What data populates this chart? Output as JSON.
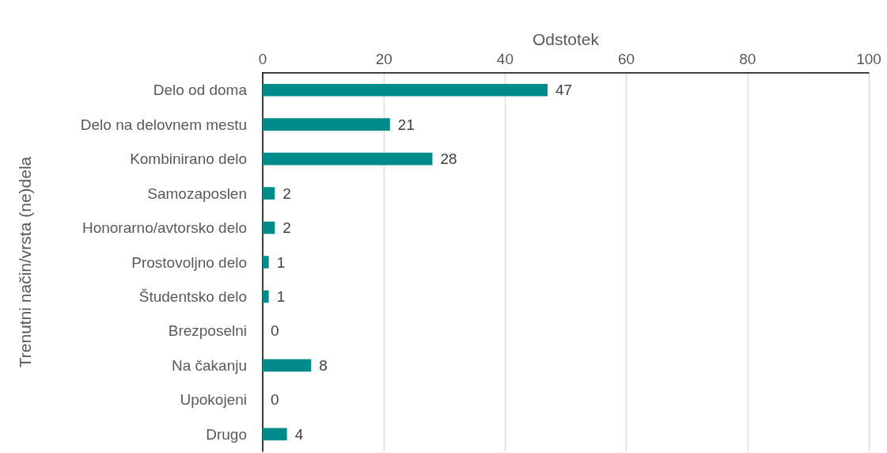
{
  "chart_data": {
    "type": "bar",
    "orientation": "horizontal",
    "xlabel": "Odstotek",
    "ylabel": "Trenutni način/vrsta (ne)dela",
    "categories": [
      "Delo od doma",
      "Delo na delovnem mestu",
      "Kombinirano delo",
      "Samozaposlen",
      "Honorarno/avtorsko delo",
      "Prostovoljno delo",
      "Študentsko delo",
      "Brezposelni",
      "Na čakanju",
      "Upokojeni",
      "Drugo"
    ],
    "values": [
      47,
      21,
      28,
      2,
      2,
      1,
      1,
      0,
      8,
      0,
      4
    ],
    "color": "#008b8b",
    "xlim": [
      0,
      100
    ],
    "xticks": [
      0,
      20,
      40,
      60,
      80,
      100
    ],
    "grid": "x",
    "data_labels": true
  }
}
